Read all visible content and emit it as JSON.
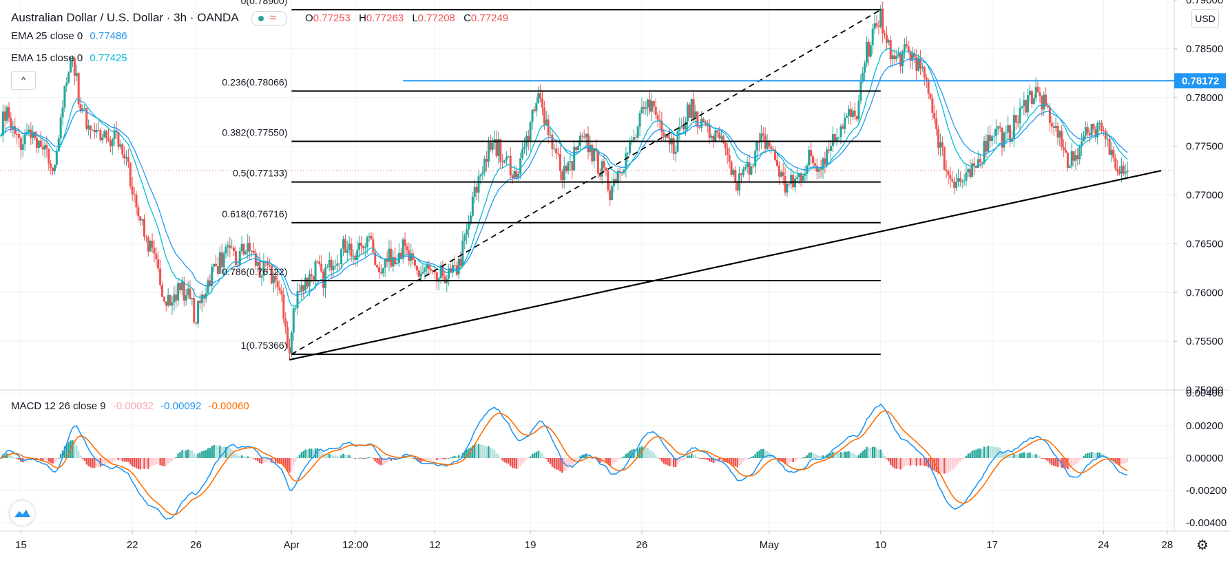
{
  "header": {
    "title": "Australian Dollar / U.S. Dollar · 3h · OANDA",
    "wave_glyph": "≈",
    "ohlc": [
      {
        "key": "O",
        "value": "0.77253"
      },
      {
        "key": "H",
        "value": "0.77263"
      },
      {
        "key": "L",
        "value": "0.77208"
      },
      {
        "key": "C",
        "value": "0.77249"
      }
    ]
  },
  "indicators": {
    "ema25": {
      "label": "EMA 25 close 0",
      "value": "0.77486",
      "color": "#2196f3"
    },
    "ema15": {
      "label": "EMA 15 close 0",
      "value": "0.77425",
      "color": "#00bcd4"
    },
    "macd": {
      "label": "MACD 12 26 close 9",
      "hist": "-0.00032",
      "macd": "-0.00092",
      "signal": "-0.00060",
      "hist_color": "#f7a9b0",
      "macd_color": "#2196f3",
      "signal_color": "#ff6d00"
    }
  },
  "controls": {
    "currency": "USD",
    "collapse": "^",
    "settings": "⚙"
  },
  "colors": {
    "up": "#26a69a",
    "down": "#ef5350",
    "fib": "#000000",
    "resistance": "#2196f3",
    "resistance_label_bg": "#2196f3",
    "grid": "#eef0f3"
  },
  "chart_data": [
    {
      "type": "candlestick",
      "title": "Australian Dollar / U.S. Dollar · 3h · OANDA",
      "ylabel": "USD",
      "ylim": [
        0.75,
        0.79
      ],
      "yticks": [
        "0.79000",
        "0.78500",
        "0.78000",
        "0.77500",
        "0.77000",
        "0.76500",
        "0.76000",
        "0.75500",
        "0.75000"
      ],
      "xticks": [
        {
          "label": "15",
          "idx": 10
        },
        {
          "label": "22",
          "idx": 66
        },
        {
          "label": "26",
          "idx": 98
        },
        {
          "label": "Apr",
          "idx": 146
        },
        {
          "label": "12:00",
          "idx": 178
        },
        {
          "label": "12",
          "idx": 218
        },
        {
          "label": "19",
          "idx": 266
        },
        {
          "label": "26",
          "idx": 322
        },
        {
          "label": "May",
          "idx": 386
        },
        {
          "label": "10",
          "idx": 442
        },
        {
          "label": "17",
          "idx": 498
        },
        {
          "label": "24",
          "idx": 554
        },
        {
          "label": "28",
          "idx": 586
        }
      ],
      "anchors": [
        [
          0,
          0.7772
        ],
        [
          3,
          0.7785
        ],
        [
          6,
          0.7765
        ],
        [
          10,
          0.7752
        ],
        [
          14,
          0.7763
        ],
        [
          18,
          0.7748
        ],
        [
          22,
          0.7742
        ],
        [
          26,
          0.7728
        ],
        [
          30,
          0.777
        ],
        [
          33,
          0.7825
        ],
        [
          36,
          0.7842
        ],
        [
          40,
          0.779
        ],
        [
          43,
          0.7775
        ],
        [
          47,
          0.7768
        ],
        [
          51,
          0.776
        ],
        [
          55,
          0.775
        ],
        [
          58,
          0.776
        ],
        [
          62,
          0.774
        ],
        [
          66,
          0.771
        ],
        [
          70,
          0.768
        ],
        [
          74,
          0.765
        ],
        [
          78,
          0.7625
        ],
        [
          82,
          0.76
        ],
        [
          86,
          0.759
        ],
        [
          90,
          0.7605
        ],
        [
          94,
          0.7595
        ],
        [
          98,
          0.7575
        ],
        [
          102,
          0.76
        ],
        [
          106,
          0.7622
        ],
        [
          110,
          0.7632
        ],
        [
          114,
          0.764
        ],
        [
          118,
          0.763
        ],
        [
          122,
          0.7645
        ],
        [
          126,
          0.764
        ],
        [
          130,
          0.7622
        ],
        [
          134,
          0.762
        ],
        [
          138,
          0.7612
        ],
        [
          142,
          0.758
        ],
        [
          145,
          0.7537
        ],
        [
          147,
          0.7578
        ],
        [
          150,
          0.7605
        ],
        [
          154,
          0.7612
        ],
        [
          158,
          0.7625
        ],
        [
          162,
          0.7615
        ],
        [
          166,
          0.7633
        ],
        [
          170,
          0.764
        ],
        [
          174,
          0.765
        ],
        [
          178,
          0.7635
        ],
        [
          182,
          0.7655
        ],
        [
          186,
          0.7645
        ],
        [
          190,
          0.7628
        ],
        [
          194,
          0.7632
        ],
        [
          198,
          0.764
        ],
        [
          202,
          0.7645
        ],
        [
          206,
          0.763
        ],
        [
          210,
          0.7618
        ],
        [
          214,
          0.7625
        ],
        [
          218,
          0.761
        ],
        [
          222,
          0.762
        ],
        [
          226,
          0.7615
        ],
        [
          230,
          0.7628
        ],
        [
          234,
          0.766
        ],
        [
          238,
          0.77
        ],
        [
          242,
          0.773
        ],
        [
          246,
          0.775
        ],
        [
          250,
          0.7748
        ],
        [
          254,
          0.7735
        ],
        [
          258,
          0.772
        ],
        [
          262,
          0.774
        ],
        [
          266,
          0.777
        ],
        [
          270,
          0.78
        ],
        [
          274,
          0.7775
        ],
        [
          278,
          0.7745
        ],
        [
          282,
          0.7725
        ],
        [
          286,
          0.7728
        ],
        [
          290,
          0.7752
        ],
        [
          294,
          0.7755
        ],
        [
          298,
          0.7738
        ],
        [
          302,
          0.7725
        ],
        [
          306,
          0.7705
        ],
        [
          310,
          0.7725
        ],
        [
          314,
          0.774
        ],
        [
          318,
          0.7755
        ],
        [
          322,
          0.778
        ],
        [
          326,
          0.7795
        ],
        [
          330,
          0.778
        ],
        [
          334,
          0.7765
        ],
        [
          338,
          0.7752
        ],
        [
          342,
          0.7765
        ],
        [
          346,
          0.779
        ],
        [
          350,
          0.778
        ],
        [
          354,
          0.7765
        ],
        [
          358,
          0.776
        ],
        [
          362,
          0.7752
        ],
        [
          366,
          0.773
        ],
        [
          370,
          0.7712
        ],
        [
          374,
          0.7722
        ],
        [
          378,
          0.774
        ],
        [
          382,
          0.7755
        ],
        [
          386,
          0.7752
        ],
        [
          390,
          0.773
        ],
        [
          394,
          0.7708
        ],
        [
          398,
          0.7712
        ],
        [
          402,
          0.7722
        ],
        [
          406,
          0.7738
        ],
        [
          410,
          0.7732
        ],
        [
          414,
          0.774
        ],
        [
          418,
          0.7755
        ],
        [
          422,
          0.7772
        ],
        [
          426,
          0.7782
        ],
        [
          430,
          0.7775
        ],
        [
          434,
          0.784
        ],
        [
          437,
          0.7858
        ],
        [
          440,
          0.7872
        ],
        [
          442,
          0.7885
        ],
        [
          444,
          0.786
        ],
        [
          448,
          0.7838
        ],
        [
          452,
          0.7842
        ],
        [
          456,
          0.7846
        ],
        [
          460,
          0.7838
        ],
        [
          464,
          0.7815
        ],
        [
          468,
          0.779
        ],
        [
          472,
          0.7748
        ],
        [
          476,
          0.7722
        ],
        [
          480,
          0.7715
        ],
        [
          484,
          0.7712
        ],
        [
          488,
          0.7722
        ],
        [
          492,
          0.7738
        ],
        [
          496,
          0.7758
        ],
        [
          500,
          0.7772
        ],
        [
          504,
          0.7755
        ],
        [
          508,
          0.7768
        ],
        [
          512,
          0.7782
        ],
        [
          516,
          0.78
        ],
        [
          520,
          0.7805
        ],
        [
          524,
          0.7792
        ],
        [
          528,
          0.7778
        ],
        [
          532,
          0.7755
        ],
        [
          536,
          0.7735
        ],
        [
          540,
          0.774
        ],
        [
          544,
          0.776
        ],
        [
          548,
          0.777
        ],
        [
          552,
          0.7765
        ],
        [
          556,
          0.775
        ],
        [
          560,
          0.7735
        ],
        [
          564,
          0.7728
        ],
        [
          566,
          0.7725
        ]
      ],
      "fibonacci": {
        "levels": [
          {
            "label": "0(0.78900)",
            "price": 0.789
          },
          {
            "label": "0.236(0.78066)",
            "price": 0.78066
          },
          {
            "label": "0.382(0.77550)",
            "price": 0.7755
          },
          {
            "label": "0.5(0.77133)",
            "price": 0.77133
          },
          {
            "label": "0.618(0.76716)",
            "price": 0.76716
          },
          {
            "label": "0.786(0.76122)",
            "price": 0.76122
          },
          {
            "label": "1(0.75366)",
            "price": 0.75366
          }
        ],
        "from_idx": 146,
        "to_idx": 442,
        "trend_from": {
          "idx": 146,
          "price": 0.75366
        },
        "trend_to": {
          "idx": 442,
          "price": 0.789
        }
      },
      "resistance": {
        "price": 0.78172,
        "label": "0.78172",
        "from_idx": 202
      },
      "trendline": {
        "from": {
          "idx": 145,
          "price": 0.7531
        },
        "to": {
          "idx": 583,
          "price": 0.7725
        }
      },
      "last_price": 0.77249
    },
    {
      "type": "macd",
      "title": "MACD 12 26 close 9",
      "ylim": [
        -0.0045,
        0.0042
      ],
      "yticks": [
        "0.00400",
        "0.00200",
        "0.00000",
        "-0.00200",
        "-0.00400"
      ],
      "series": [
        {
          "name": "MACD",
          "color": "#2196f3"
        },
        {
          "name": "Signal",
          "color": "#ff6d00"
        },
        {
          "name": "Histogram",
          "color": "#26a69a"
        }
      ]
    }
  ]
}
